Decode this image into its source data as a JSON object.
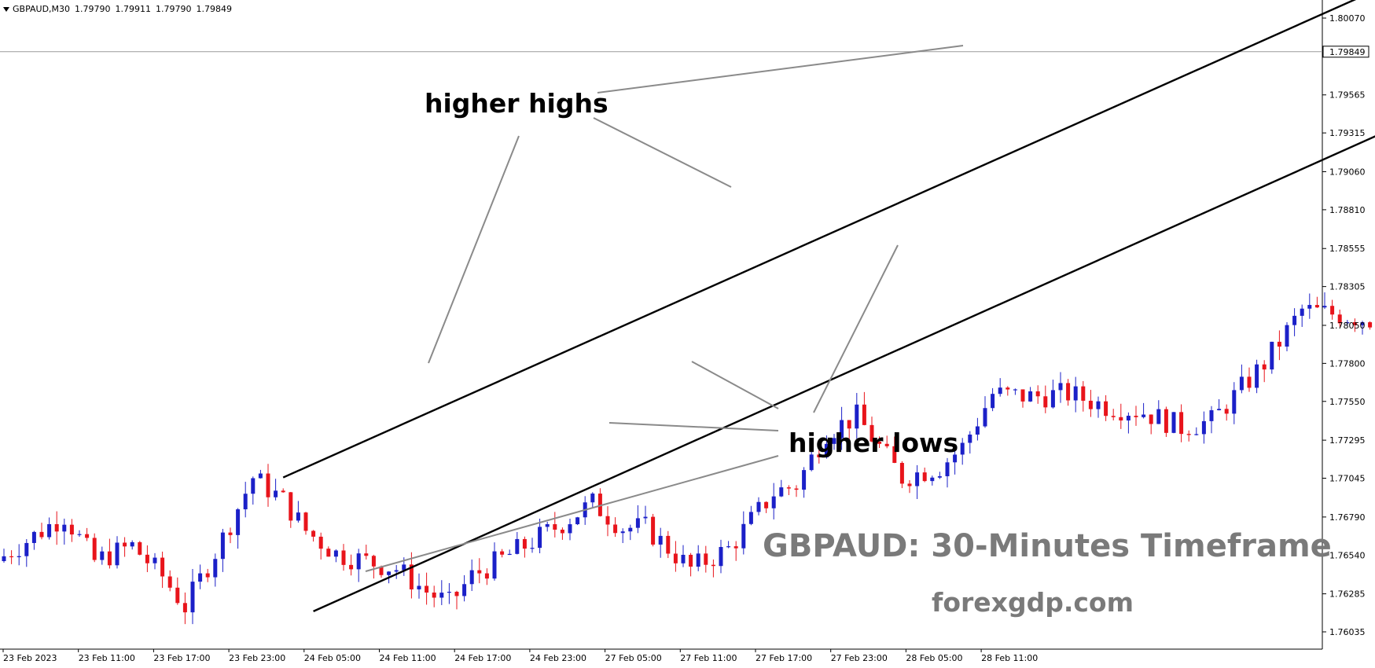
{
  "header": {
    "symbol": "GBPAUD,M30",
    "open": "1.79790",
    "high": "1.79911",
    "low": "1.79790",
    "close": "1.79849"
  },
  "colors": {
    "bull": "#1b20c8",
    "bear": "#e8141b",
    "channel": "#000000",
    "pointer": "#8a8a8a",
    "watermark": "#7a7a7a",
    "price_line": "#9a9a9a"
  },
  "annotations": {
    "higher_highs": "higher highs",
    "higher_lows": "higher lows",
    "title": "GBPAUD: 30-Minutes Timeframe",
    "site": "forexgdp.com"
  },
  "chart_data": {
    "type": "candlestick",
    "symbol": "GBPAUD",
    "timeframe": "M30",
    "y_ticks": [
      "1.80070",
      "1.79565",
      "1.79315",
      "1.79060",
      "1.78810",
      "1.78555",
      "1.78305",
      "1.78050",
      "1.77800",
      "1.77550",
      "1.77295",
      "1.77045",
      "1.76790",
      "1.76540",
      "1.76285",
      "1.76035"
    ],
    "ylim": [
      1.7595,
      1.802
    ],
    "current_price": "1.79849",
    "x_ticks": [
      "23 Feb 2023",
      "23 Feb 11:00",
      "23 Feb 17:00",
      "23 Feb 23:00",
      "24 Feb 05:00",
      "24 Feb 11:00",
      "24 Feb 17:00",
      "24 Feb 23:00",
      "27 Feb 05:00",
      "27 Feb 11:00",
      "27 Feb 17:00",
      "27 Feb 23:00",
      "28 Feb 05:00",
      "28 Feb 11:00"
    ],
    "bar_count": 198,
    "ohlc_points": [
      [
        0,
        1.765
      ],
      [
        9,
        1.768
      ],
      [
        13,
        1.765
      ],
      [
        18,
        1.766
      ],
      [
        22,
        1.764
      ],
      [
        25,
        1.762
      ],
      [
        30,
        1.7665
      ],
      [
        34,
        1.7705
      ],
      [
        38,
        1.769
      ],
      [
        41,
        1.767
      ],
      [
        45,
        1.7655
      ],
      [
        49,
        1.765
      ],
      [
        53,
        1.7645
      ],
      [
        57,
        1.763
      ],
      [
        60,
        1.7622
      ],
      [
        63,
        1.764
      ],
      [
        70,
        1.766
      ],
      [
        75,
        1.7675
      ],
      [
        79,
        1.7688
      ],
      [
        83,
        1.7672
      ],
      [
        86,
        1.7672
      ],
      [
        92,
        1.7645
      ],
      [
        97,
        1.7658
      ],
      [
        103,
        1.7695
      ],
      [
        106,
        1.77
      ],
      [
        110,
        1.7735
      ],
      [
        114,
        1.7745
      ],
      [
        120,
        1.7705
      ],
      [
        125,
        1.7712
      ],
      [
        128,
        1.7725
      ],
      [
        132,
        1.776
      ],
      [
        137,
        1.7758
      ],
      [
        142,
        1.776
      ],
      [
        147,
        1.7752
      ],
      [
        152,
        1.7748
      ],
      [
        157,
        1.7738
      ],
      [
        161,
        1.7742
      ],
      [
        168,
        1.778
      ],
      [
        173,
        1.7815
      ],
      [
        178,
        1.7812
      ],
      [
        183,
        1.7808
      ],
      [
        188,
        1.7805
      ],
      [
        192,
        1.7792
      ],
      [
        195,
        1.7775
      ],
      [
        198,
        1.7823
      ]
    ],
    "channel_upper": [
      [
        37,
        1.7705
      ],
      [
        197,
        1.8059
      ]
    ],
    "channel_lower": [
      [
        41,
        1.7617
      ],
      [
        237,
        1.8052
      ]
    ]
  }
}
